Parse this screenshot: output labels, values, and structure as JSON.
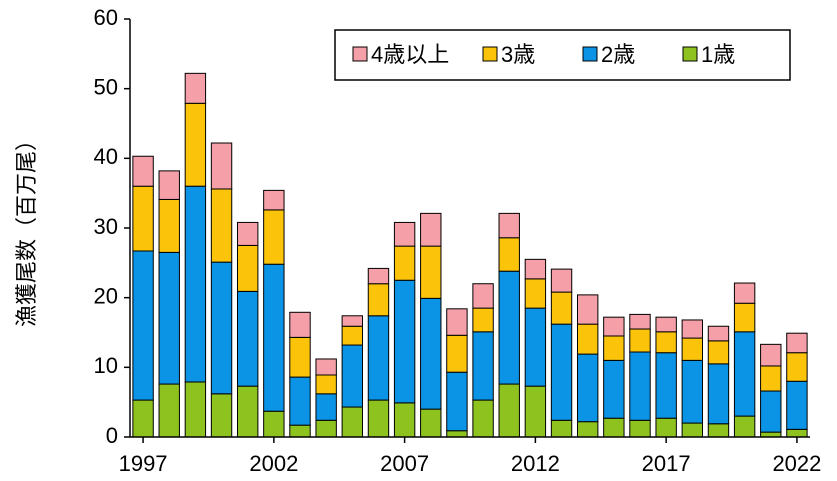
{
  "chart_data": {
    "type": "stacked-bar",
    "y_label": "漁獲尾数（百万尾）",
    "categories": [
      "1997",
      null,
      null,
      null,
      null,
      "2002",
      null,
      null,
      null,
      null,
      "2007",
      null,
      null,
      null,
      null,
      "2012",
      null,
      null,
      null,
      null,
      "2017",
      null,
      null,
      null,
      null,
      "2022"
    ],
    "series": [
      {
        "name": "1歳",
        "color": "#8dc21f",
        "values": [
          5.3,
          7.6,
          7.9,
          6.2,
          7.3,
          3.7,
          1.7,
          2.4,
          4.3,
          5.3,
          4.9,
          4.0,
          0.9,
          5.3,
          7.6,
          7.3,
          2.4,
          2.2,
          2.7,
          2.4,
          2.7,
          2.0,
          1.9,
          3.0,
          0.7,
          1.1
        ]
      },
      {
        "name": "2歳",
        "color": "#0b93e6",
        "values": [
          21.4,
          18.9,
          28.1,
          18.9,
          13.6,
          21.1,
          6.9,
          3.8,
          8.9,
          12.1,
          17.6,
          15.9,
          8.4,
          9.8,
          16.2,
          11.2,
          13.8,
          9.7,
          8.3,
          9.8,
          9.4,
          9.0,
          8.6,
          12.1,
          5.9,
          6.9
        ]
      },
      {
        "name": "3歳",
        "color": "#fcc30b",
        "values": [
          9.3,
          7.6,
          11.9,
          10.5,
          6.6,
          7.8,
          5.7,
          2.7,
          2.7,
          4.6,
          4.9,
          7.5,
          5.3,
          3.4,
          4.8,
          4.2,
          4.6,
          4.3,
          3.5,
          3.3,
          3.0,
          3.2,
          3.3,
          4.1,
          3.6,
          4.1
        ]
      },
      {
        "name": "4歳以上",
        "color": "#f5a0a8",
        "values": [
          4.3,
          4.1,
          4.3,
          6.6,
          3.3,
          2.8,
          3.6,
          2.3,
          1.5,
          2.2,
          3.4,
          4.7,
          3.8,
          3.5,
          3.5,
          2.8,
          3.3,
          4.2,
          2.7,
          2.1,
          2.1,
          2.6,
          2.1,
          2.9,
          3.1,
          2.8
        ]
      }
    ],
    "ylim": [
      0,
      60
    ],
    "yticks": [
      0,
      10,
      20,
      30,
      40,
      50,
      60
    ],
    "grid": false,
    "legend": "top-right"
  }
}
